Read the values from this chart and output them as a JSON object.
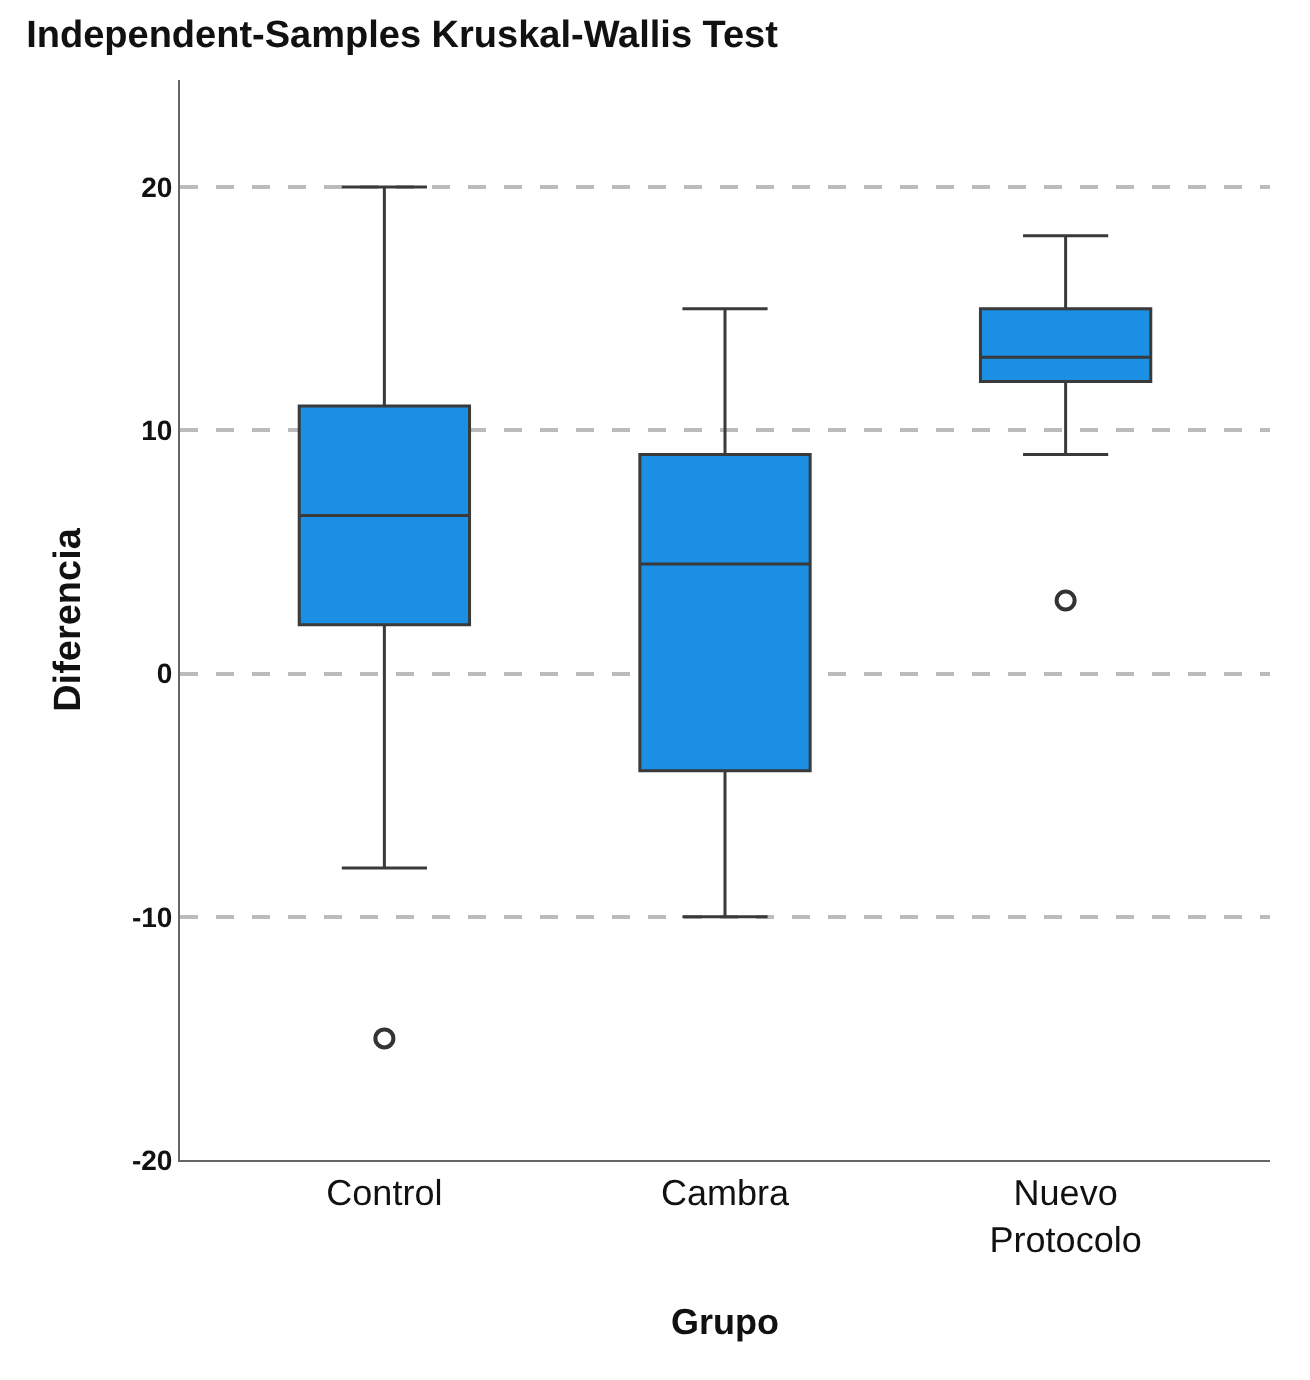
{
  "chart_data": {
    "type": "box",
    "title": "Independent-Samples Kruskal-Wallis Test",
    "xlabel": "Grupo",
    "ylabel": "Diferencia",
    "categories": [
      "Control",
      "Cambra",
      "Nuevo Protocolo"
    ],
    "color": "#1a8fe3",
    "boxes": [
      {
        "low": -8,
        "q1": 2,
        "median": 6.5,
        "q3": 11,
        "high": 20,
        "outliers": [
          -15
        ]
      },
      {
        "low": -10,
        "q1": -4,
        "median": 4.5,
        "q3": 9,
        "high": 15
      },
      {
        "low": 9,
        "q1": 12,
        "median": 13,
        "q3": 15,
        "high": 18,
        "outliers": [
          3
        ]
      }
    ],
    "ylim": [
      -20,
      24.4
    ],
    "yticks": [
      -20,
      -10,
      0,
      10,
      20
    ],
    "grid": "y"
  }
}
